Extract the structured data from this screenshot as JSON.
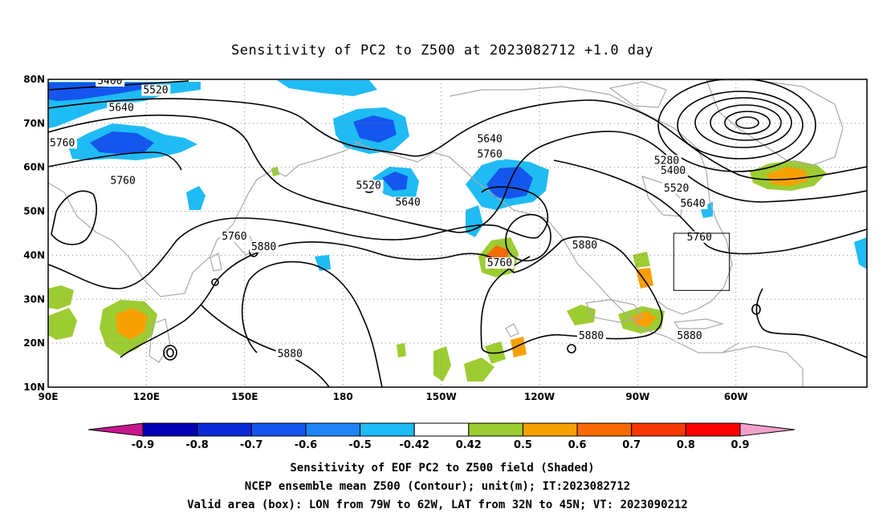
{
  "chart_data": {
    "type": "heatmap",
    "title": "Sensitivity of PC2 to Z500 at 2023082712 +1.0 day",
    "map_extent": {
      "lon_min": 90,
      "lon_max": 340,
      "lat_min": 10,
      "lat_max": 80
    },
    "x_ticks": [
      {
        "lon": 90,
        "label": "90E"
      },
      {
        "lon": 120,
        "label": "120E"
      },
      {
        "lon": 150,
        "label": "150E"
      },
      {
        "lon": 180,
        "label": "180"
      },
      {
        "lon": 210,
        "label": "150W"
      },
      {
        "lon": 240,
        "label": "120W"
      },
      {
        "lon": 270,
        "label": "90W"
      },
      {
        "lon": 300,
        "label": "60W"
      }
    ],
    "y_ticks": [
      {
        "lat": 10,
        "label": "10N"
      },
      {
        "lat": 20,
        "label": "20N"
      },
      {
        "lat": 30,
        "label": "30N"
      },
      {
        "lat": 40,
        "label": "40N"
      },
      {
        "lat": 50,
        "label": "50N"
      },
      {
        "lat": 60,
        "label": "60N"
      },
      {
        "lat": 70,
        "label": "70N"
      },
      {
        "lat": 80,
        "label": "80N"
      }
    ],
    "grid": true,
    "contour_labels": [
      {
        "lon": 105,
        "lat": 78.9,
        "text": "5400"
      },
      {
        "lon": 119,
        "lat": 76.8,
        "text": "5520"
      },
      {
        "lon": 108.5,
        "lat": 72.8,
        "text": "5640"
      },
      {
        "lon": 90.5,
        "lat": 64.8,
        "text": "5760"
      },
      {
        "lon": 109,
        "lat": 56.2,
        "text": "5760"
      },
      {
        "lon": 143,
        "lat": 43.5,
        "text": "5760"
      },
      {
        "lon": 152,
        "lat": 41.2,
        "text": "5880"
      },
      {
        "lon": 184,
        "lat": 55.1,
        "text": "5520"
      },
      {
        "lon": 196,
        "lat": 51.3,
        "text": "5640"
      },
      {
        "lon": 221,
        "lat": 65.7,
        "text": "5640"
      },
      {
        "lon": 221,
        "lat": 62.2,
        "text": "5760"
      },
      {
        "lon": 224,
        "lat": 37.5,
        "text": "5760"
      },
      {
        "lon": 250,
        "lat": 41.5,
        "text": "5880"
      },
      {
        "lon": 275,
        "lat": 60.8,
        "text": "5280"
      },
      {
        "lon": 277,
        "lat": 58.5,
        "text": "5400"
      },
      {
        "lon": 278,
        "lat": 54.5,
        "text": "5520"
      },
      {
        "lon": 283,
        "lat": 51,
        "text": "5640"
      },
      {
        "lon": 285,
        "lat": 43.4,
        "text": "5760"
      },
      {
        "lon": 282,
        "lat": 20.9,
        "text": "5880"
      },
      {
        "lon": 252,
        "lat": 20.9,
        "text": "5880"
      },
      {
        "lon": 160,
        "lat": 16.8,
        "text": "5880"
      }
    ],
    "valid_box": {
      "lon_min": 281,
      "lon_max": 298,
      "lat_min": 32,
      "lat_max": 45
    },
    "colorbar": {
      "labels": [
        "-0.9",
        "-0.8",
        "-0.7",
        "-0.6",
        "-0.5",
        "-0.42",
        "0.42",
        "0.5",
        "0.6",
        "0.7",
        "0.8",
        "0.9"
      ],
      "colors": [
        "#0000b4",
        "#0a28d8",
        "#1456ee",
        "#1f84f6",
        "#1fbbf5",
        "#ffffff",
        "#9ccc32",
        "#f7a003",
        "#f66a00",
        "#f73706",
        "#ff0000"
      ],
      "low_end_color": "#c8168e",
      "high_end_color": "#f1a0c9"
    },
    "shading_colors": {
      "land_outline": "#aaaaaa",
      "contour": "#000000"
    }
  },
  "captions": {
    "line1": "Sensitivity of EOF PC2 to Z500 field (Shaded)",
    "line2": "NCEP ensemble mean Z500 (Contour); unit(m); IT:2023082712",
    "line3": "Valid area (box): LON from 79W to 62W, LAT from 32N to 45N; VT: 2023090212"
  }
}
